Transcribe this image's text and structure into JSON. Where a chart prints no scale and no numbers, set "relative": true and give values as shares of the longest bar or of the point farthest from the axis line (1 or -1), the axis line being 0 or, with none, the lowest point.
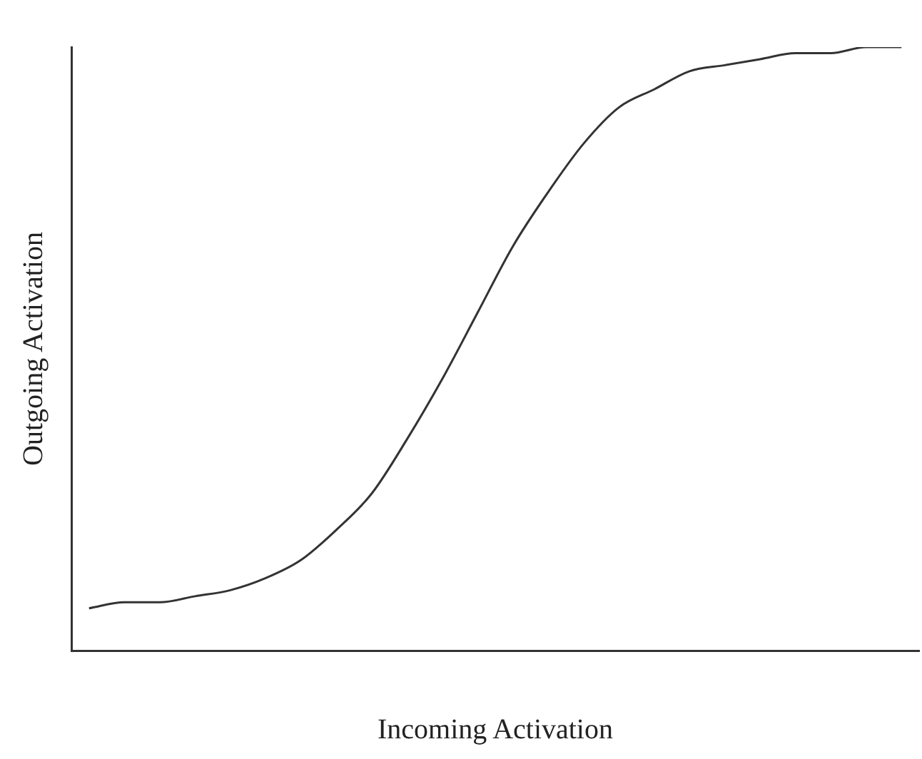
{
  "chart_data": {
    "type": "line",
    "xlabel": "Incoming Activation",
    "ylabel": "Outgoing Activation",
    "relative": true,
    "grid": false,
    "legend": false,
    "marker": "none",
    "line_style": "solid",
    "categories": [
      null,
      null,
      null,
      null,
      null,
      null,
      null,
      null,
      null,
      null,
      null,
      null,
      null,
      null,
      null,
      null,
      null,
      null,
      null,
      null,
      null,
      null,
      null,
      null
    ],
    "series": [
      {
        "color": "#333333",
        "values": [
          0.07,
          0.08,
          0.08,
          0.09,
          0.1,
          0.12,
          0.15,
          0.2,
          0.26,
          0.35,
          0.45,
          0.56,
          0.67,
          0.76,
          0.84,
          0.9,
          0.93,
          0.96,
          0.97,
          0.98,
          0.99,
          0.99,
          1.0,
          1.0
        ]
      }
    ]
  }
}
